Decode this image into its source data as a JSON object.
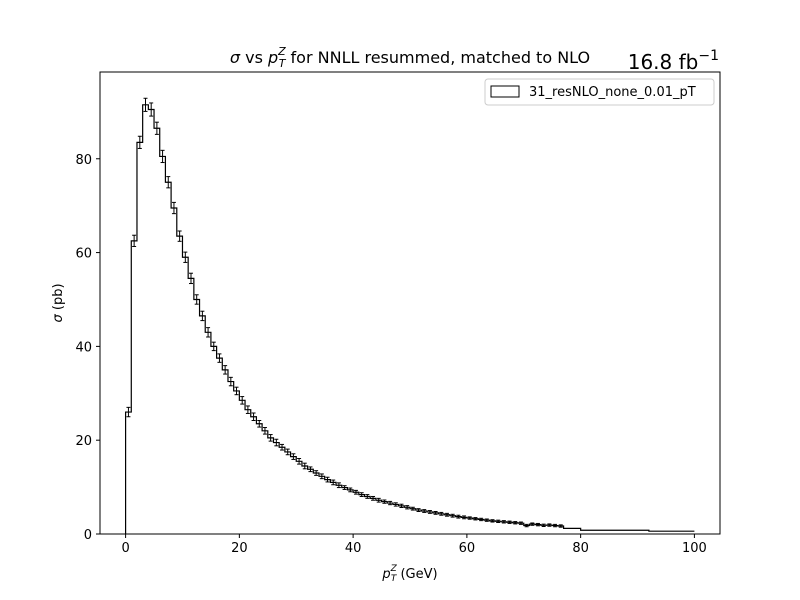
{
  "chart_data": {
    "type": "histogram",
    "title_sigma": "σ",
    "title_mid": " vs ",
    "title_p": "p",
    "title_sub": "T",
    "title_sup": "Z",
    "title_rest": " for NNLL resummed, matched to NLO",
    "lumi_main": "16.8 fb",
    "lumi_sup": "−1",
    "xlabel_p": "p",
    "xlabel_sub": "T",
    "xlabel_sup": "Z",
    "xlabel_rest": " (GeV)",
    "ylabel_sigma": "σ",
    "ylabel_rest": " (pb)",
    "legend": "31_resNLO_none_0.01_pT",
    "xlim": [
      -4.5,
      104.5
    ],
    "ylim": [
      0,
      98.5
    ],
    "xticks": [
      0,
      20,
      40,
      60,
      80,
      100
    ],
    "yticks": [
      0,
      20,
      40,
      60,
      80
    ],
    "grid": false,
    "legend_position": "upper-right",
    "bin_width_low": 1,
    "bin_edges_high": [
      70,
      71,
      72,
      73,
      74,
      75,
      76,
      77,
      80,
      92,
      100
    ],
    "values": [
      26,
      62.5,
      83.5,
      91.5,
      90.5,
      86.5,
      80.5,
      75,
      69.5,
      63.5,
      59,
      54.5,
      50,
      46.5,
      43,
      40,
      37.5,
      35,
      32.5,
      30.5,
      28.5,
      26.5,
      25,
      23.5,
      22,
      20.5,
      19.5,
      18.5,
      17.5,
      16.5,
      15.5,
      14.5,
      13.8,
      13,
      12.3,
      11.6,
      11,
      10.4,
      9.9,
      9.4,
      8.9,
      8.4,
      8,
      7.6,
      7.2,
      6.9,
      6.6,
      6.3,
      6,
      5.7,
      5.4,
      5.1,
      4.9,
      4.7,
      4.5,
      4.3,
      4.1,
      3.9,
      3.7,
      3.55,
      3.4,
      3.25,
      3.1,
      2.95,
      2.8,
      2.7,
      2.6,
      2.5,
      2.4,
      2.3,
      1.8,
      2.1,
      2.0,
      1.85,
      1.9,
      1.8,
      1.7,
      1.2,
      0.8,
      0.6
    ],
    "errors": [
      1.0,
      1.2,
      1.3,
      1.4,
      1.4,
      1.3,
      1.3,
      1.2,
      1.2,
      1.1,
      1.1,
      1.1,
      1.0,
      1.0,
      1.0,
      0.9,
      0.9,
      0.9,
      0.9,
      0.8,
      0.8,
      0.8,
      0.8,
      0.7,
      0.7,
      0.7,
      0.7,
      0.6,
      0.6,
      0.6,
      0.6,
      0.6,
      0.5,
      0.5,
      0.5,
      0.5,
      0.5,
      0.5,
      0.4,
      0.4,
      0.4,
      0.4,
      0.4,
      0.4,
      0.4,
      0.35,
      0.35,
      0.35,
      0.35,
      0.35,
      0.3,
      0.3,
      0.3,
      0.3,
      0.3,
      0.3,
      0.3,
      0.3,
      0.3,
      0.3,
      0.25,
      0.25,
      0.25,
      0.25,
      0.25,
      0.25,
      0.25,
      0.25,
      0.25,
      0.25,
      0.25,
      0.25,
      0.25,
      0.25,
      0.25,
      0.25,
      0.25,
      0,
      0,
      0
    ]
  }
}
